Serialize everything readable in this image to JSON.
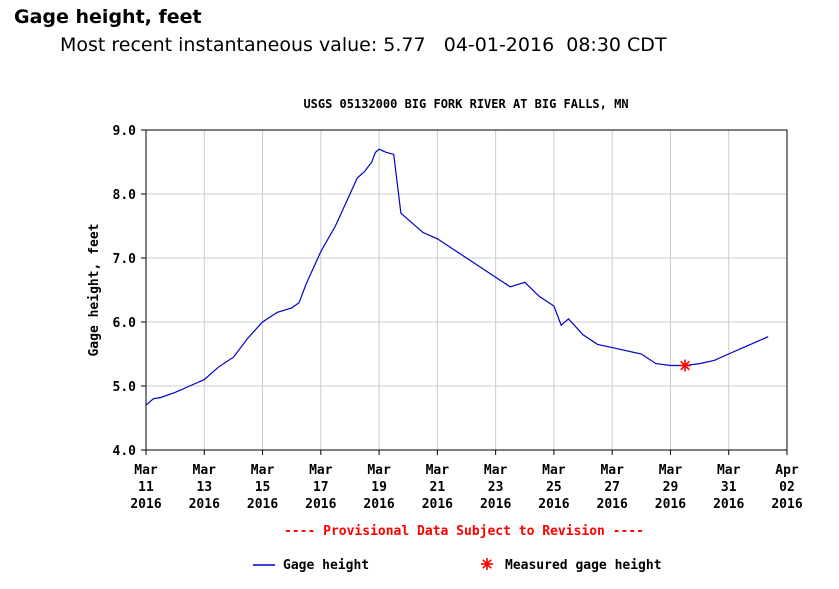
{
  "header": {
    "title": "Gage height, feet",
    "recent_label": "Most recent instantaneous value:",
    "recent_value": "5.77",
    "recent_date": "04-01-2016",
    "recent_time": "08:30 CDT"
  },
  "chart_data": {
    "type": "line",
    "title": "USGS 05132000 BIG FORK RIVER AT BIG FALLS, MN",
    "ylabel": "Gage height, feet",
    "xlabel": "",
    "ylim": [
      4.0,
      9.0
    ],
    "yticks": [
      "4.0",
      "5.0",
      "6.0",
      "7.0",
      "8.0",
      "9.0"
    ],
    "xlim": [
      "2016-03-11",
      "2016-04-02"
    ],
    "xticks": [
      {
        "month": "Mar",
        "day": "11",
        "year": "2016"
      },
      {
        "month": "Mar",
        "day": "13",
        "year": "2016"
      },
      {
        "month": "Mar",
        "day": "15",
        "year": "2016"
      },
      {
        "month": "Mar",
        "day": "17",
        "year": "2016"
      },
      {
        "month": "Mar",
        "day": "19",
        "year": "2016"
      },
      {
        "month": "Mar",
        "day": "21",
        "year": "2016"
      },
      {
        "month": "Mar",
        "day": "23",
        "year": "2016"
      },
      {
        "month": "Mar",
        "day": "25",
        "year": "2016"
      },
      {
        "month": "Mar",
        "day": "27",
        "year": "2016"
      },
      {
        "month": "Mar",
        "day": "29",
        "year": "2016"
      },
      {
        "month": "Mar",
        "day": "31",
        "year": "2016"
      },
      {
        "month": "Apr",
        "day": "02",
        "year": "2016"
      }
    ],
    "grid": true,
    "notice": "---- Provisional Data Subject to Revision ----",
    "series": [
      {
        "name": "Gage height",
        "color": "#0000cc",
        "x": [
          "2016-03-11 00:00",
          "2016-03-11 06:00",
          "2016-03-11 12:00",
          "2016-03-12 00:00",
          "2016-03-12 12:00",
          "2016-03-13 00:00",
          "2016-03-13 12:00",
          "2016-03-14 00:00",
          "2016-03-14 12:00",
          "2016-03-15 00:00",
          "2016-03-15 12:00",
          "2016-03-16 00:00",
          "2016-03-16 06:00",
          "2016-03-16 12:00",
          "2016-03-17 00:00",
          "2016-03-17 12:00",
          "2016-03-18 00:00",
          "2016-03-18 06:00",
          "2016-03-18 12:00",
          "2016-03-18 18:00",
          "2016-03-18 21:00",
          "2016-03-19 00:00",
          "2016-03-19 06:00",
          "2016-03-19 12:00",
          "2016-03-19 18:00",
          "2016-03-20 00:00",
          "2016-03-20 12:00",
          "2016-03-21 00:00",
          "2016-03-21 12:00",
          "2016-03-22 00:00",
          "2016-03-22 12:00",
          "2016-03-23 00:00",
          "2016-03-23 12:00",
          "2016-03-24 00:00",
          "2016-03-24 12:00",
          "2016-03-25 00:00",
          "2016-03-25 06:00",
          "2016-03-25 12:00",
          "2016-03-26 00:00",
          "2016-03-26 12:00",
          "2016-03-27 00:00",
          "2016-03-27 12:00",
          "2016-03-28 00:00",
          "2016-03-28 12:00",
          "2016-03-29 00:00",
          "2016-03-29 12:00",
          "2016-03-30 00:00",
          "2016-03-30 12:00",
          "2016-03-31 00:00",
          "2016-03-31 12:00",
          "2016-04-01 00:00",
          "2016-04-01 08:30"
        ],
        "values": [
          4.7,
          4.8,
          4.82,
          4.9,
          5.0,
          5.1,
          5.3,
          5.45,
          5.75,
          6.0,
          6.15,
          6.22,
          6.3,
          6.6,
          7.1,
          7.5,
          8.0,
          8.25,
          8.35,
          8.5,
          8.65,
          8.7,
          8.65,
          8.62,
          7.7,
          7.6,
          7.4,
          7.3,
          7.15,
          7.0,
          6.85,
          6.7,
          6.55,
          6.62,
          6.4,
          6.25,
          5.95,
          6.05,
          5.8,
          5.65,
          5.6,
          5.55,
          5.5,
          5.35,
          5.32,
          5.32,
          5.35,
          5.4,
          5.5,
          5.6,
          5.7,
          5.77
        ]
      },
      {
        "name": "Measured gage height",
        "color": "#ff0000",
        "marker": "asterisk",
        "x": [
          "2016-03-29 12:00"
        ],
        "values": [
          5.32
        ]
      }
    ],
    "legend": "bottom"
  }
}
